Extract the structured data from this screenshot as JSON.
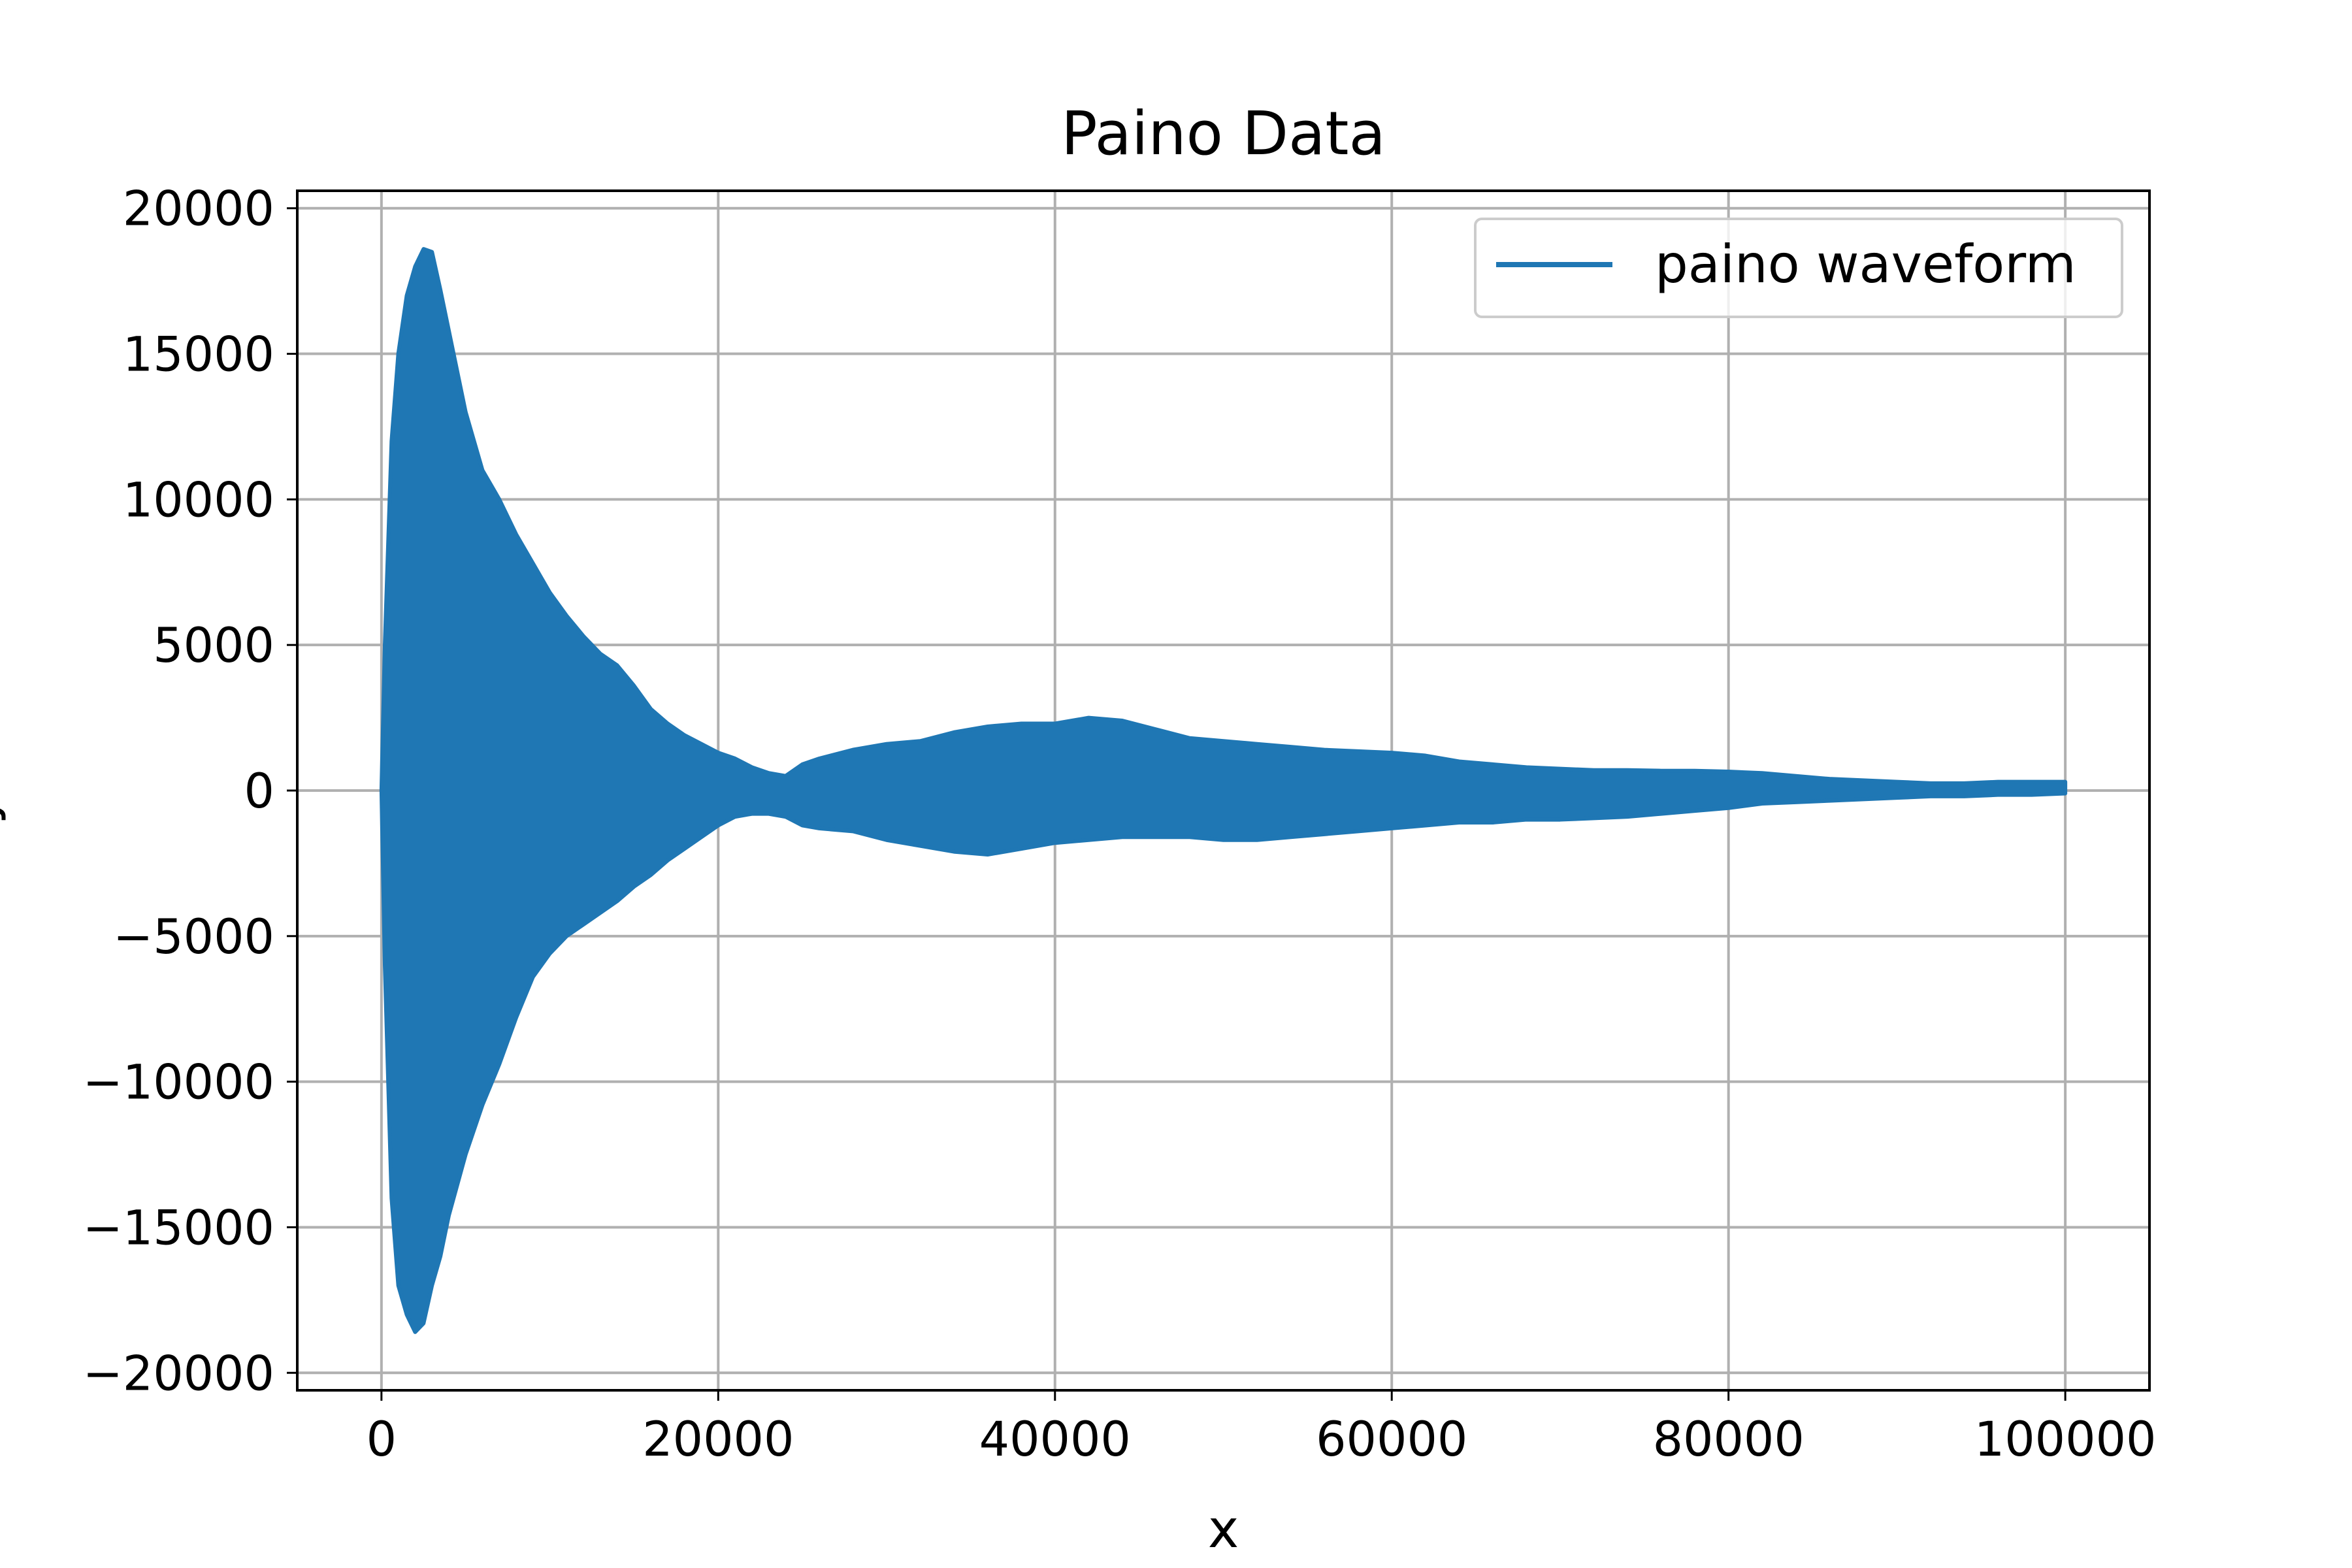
{
  "chart_data": {
    "type": "line",
    "title": "Paino Data",
    "xlabel": "x",
    "ylabel": "y",
    "xlim": [
      -5000,
      105000
    ],
    "ylim": [
      -20600,
      20600
    ],
    "x_ticks": [
      0,
      20000,
      40000,
      60000,
      80000,
      100000
    ],
    "x_tick_labels": [
      "0",
      "20000",
      "40000",
      "60000",
      "80000",
      "100000"
    ],
    "y_ticks": [
      -20000,
      -15000,
      -10000,
      -5000,
      0,
      5000,
      10000,
      15000,
      20000
    ],
    "y_tick_labels": [
      "−20000",
      "−15000",
      "−10000",
      "−5000",
      "0",
      "5000",
      "10000",
      "15000",
      "20000"
    ],
    "grid": true,
    "legend_position": "top-right",
    "series": [
      {
        "name": "paino waveform",
        "color": "#1f77b4",
        "envelope": {
          "x": [
            0,
            200,
            600,
            1000,
            1500,
            2000,
            2500,
            3000,
            3500,
            4000,
            5000,
            6000,
            7000,
            8000,
            9000,
            10000,
            11000,
            12000,
            13000,
            14000,
            15000,
            16000,
            17000,
            18000,
            19000,
            20000,
            21000,
            22000,
            23000,
            24000,
            25000,
            26000,
            28000,
            30000,
            32000,
            34000,
            36000,
            38000,
            40000,
            42000,
            44000,
            46000,
            48000,
            50000,
            52000,
            54000,
            56000,
            58000,
            60000,
            62000,
            64000,
            66000,
            68000,
            70000,
            72000,
            74000,
            76000,
            78000,
            80000,
            82000,
            84000,
            86000,
            88000,
            90000,
            92000,
            94000,
            96000,
            98000,
            100000
          ],
          "upper": [
            0,
            5000,
            12000,
            15000,
            17000,
            18000,
            18600,
            18500,
            17200,
            15800,
            13000,
            11000,
            10000,
            8800,
            7800,
            6800,
            6000,
            5300,
            4700,
            4300,
            3600,
            2800,
            2300,
            1900,
            1600,
            1300,
            1100,
            800,
            600,
            500,
            900,
            1100,
            1400,
            1600,
            1700,
            2000,
            2200,
            2300,
            2300,
            2500,
            2400,
            2100,
            1800,
            1700,
            1600,
            1500,
            1400,
            1350,
            1300,
            1200,
            1000,
            900,
            800,
            750,
            700,
            700,
            680,
            680,
            650,
            600,
            500,
            400,
            350,
            300,
            250,
            250,
            300,
            300,
            300
          ],
          "lower": [
            0,
            -6000,
            -14000,
            -17000,
            -18000,
            -18600,
            -18300,
            -17000,
            -16000,
            -14600,
            -12500,
            -10800,
            -9400,
            -7800,
            -6400,
            -5600,
            -5000,
            -4600,
            -4200,
            -3800,
            -3300,
            -2900,
            -2400,
            -2000,
            -1600,
            -1200,
            -900,
            -800,
            -800,
            -900,
            -1200,
            -1300,
            -1400,
            -1700,
            -1900,
            -2100,
            -2200,
            -2000,
            -1800,
            -1700,
            -1600,
            -1600,
            -1600,
            -1700,
            -1700,
            -1600,
            -1500,
            -1400,
            -1300,
            -1200,
            -1100,
            -1100,
            -1000,
            -1000,
            -950,
            -900,
            -800,
            -700,
            -600,
            -450,
            -400,
            -350,
            -300,
            -250,
            -200,
            -200,
            -150,
            -150,
            -100
          ]
        }
      }
    ]
  }
}
